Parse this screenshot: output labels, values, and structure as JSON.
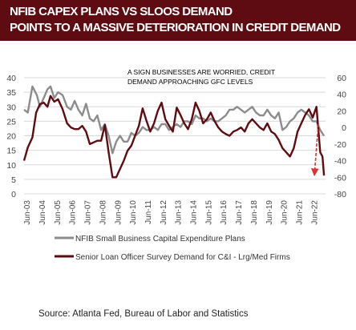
{
  "header": {
    "title_line_1": "NFIB CAPEX PLANS VS SLOOS DEMAND",
    "title_line_2": "POINTS TO A MASSIVE DETERIORATION IN CREDIT DEMAND",
    "background": "#5e0c12"
  },
  "source": "Source:  Atlanta  Fed, Bureau of Labor and Statistics",
  "chart_data": {
    "type": "line",
    "annotation": [
      "A SIGN BUSINESSES ARE WORRIED, CREDIT",
      "DEMAND APPROACHING GFC LEVELS"
    ],
    "x_ticks": [
      "Jun-03",
      "Jun-04",
      "Jun-05",
      "Jun-06",
      "Jun-07",
      "Jun-08",
      "Jun-09",
      "Jun-10",
      "Jun-11",
      "Jun-12",
      "Jun-13",
      "Jun-14",
      "Jun-15",
      "Jun-16",
      "Jun-17",
      "Jun-18",
      "Jun-19",
      "Jun-20",
      "Jun-21",
      "Jun-22"
    ],
    "x_range": [
      2003.25,
      2023.2
    ],
    "left_axis": {
      "ticks": [
        0,
        5,
        10,
        15,
        20,
        25,
        30,
        35,
        40
      ],
      "ylim": [
        0,
        40
      ]
    },
    "right_axis": {
      "ticks": [
        -80,
        -60,
        -40,
        -20,
        0,
        20,
        40,
        60
      ],
      "ylim": [
        -80,
        60
      ]
    },
    "grid": "horizontal",
    "legend_position": "bottom",
    "series": [
      {
        "name": "NFIB Small Business Capital Expenditure Plans",
        "axis": "left",
        "color": "#8c8c8c",
        "points": [
          [
            2003.25,
            29
          ],
          [
            2003.5,
            28
          ],
          [
            2003.8,
            37
          ],
          [
            2004.1,
            34
          ],
          [
            2004.3,
            30
          ],
          [
            2004.55,
            33
          ],
          [
            2004.8,
            36
          ],
          [
            2005.0,
            37
          ],
          [
            2005.25,
            33
          ],
          [
            2005.5,
            35
          ],
          [
            2005.8,
            34
          ],
          [
            2006.1,
            30
          ],
          [
            2006.35,
            29
          ],
          [
            2006.6,
            32
          ],
          [
            2006.85,
            29
          ],
          [
            2007.1,
            27
          ],
          [
            2007.35,
            31
          ],
          [
            2007.6,
            26
          ],
          [
            2007.85,
            25
          ],
          [
            2008.1,
            27
          ],
          [
            2008.35,
            22
          ],
          [
            2008.6,
            24
          ],
          [
            2008.85,
            20
          ],
          [
            2009.1,
            14
          ],
          [
            2009.35,
            18
          ],
          [
            2009.6,
            20
          ],
          [
            2009.85,
            18
          ],
          [
            2010.1,
            18
          ],
          [
            2010.35,
            21
          ],
          [
            2010.6,
            20
          ],
          [
            2010.85,
            21
          ],
          [
            2011.1,
            23
          ],
          [
            2011.35,
            22
          ],
          [
            2011.6,
            22
          ],
          [
            2011.85,
            23
          ],
          [
            2012.1,
            22
          ],
          [
            2012.35,
            24
          ],
          [
            2012.6,
            24
          ],
          [
            2012.85,
            22
          ],
          [
            2013.1,
            23
          ],
          [
            2013.35,
            24
          ],
          [
            2013.6,
            23
          ],
          [
            2013.85,
            25
          ],
          [
            2014.1,
            25
          ],
          [
            2014.35,
            24
          ],
          [
            2014.6,
            27
          ],
          [
            2014.85,
            26
          ],
          [
            2015.1,
            26
          ],
          [
            2015.35,
            25
          ],
          [
            2015.6,
            26
          ],
          [
            2015.85,
            25
          ],
          [
            2016.1,
            25
          ],
          [
            2016.35,
            26
          ],
          [
            2016.6,
            27
          ],
          [
            2016.85,
            29
          ],
          [
            2017.1,
            29
          ],
          [
            2017.35,
            30
          ],
          [
            2017.6,
            29
          ],
          [
            2017.85,
            28
          ],
          [
            2018.1,
            29
          ],
          [
            2018.35,
            30
          ],
          [
            2018.6,
            28
          ],
          [
            2018.85,
            27
          ],
          [
            2019.1,
            27
          ],
          [
            2019.35,
            29
          ],
          [
            2019.6,
            27
          ],
          [
            2019.85,
            26
          ],
          [
            2020.1,
            28
          ],
          [
            2020.35,
            22
          ],
          [
            2020.6,
            23
          ],
          [
            2020.85,
            25
          ],
          [
            2021.1,
            26
          ],
          [
            2021.35,
            28
          ],
          [
            2021.6,
            29
          ],
          [
            2021.85,
            28
          ],
          [
            2022.1,
            27
          ],
          [
            2022.35,
            25
          ],
          [
            2022.6,
            25
          ],
          [
            2022.85,
            22
          ],
          [
            2023.1,
            20
          ]
        ]
      },
      {
        "name": "Senior Loan Officer Survey Demand for C&I - Lrg/Med Firms",
        "axis": "right",
        "color": "#5e0c12",
        "points": [
          [
            2003.25,
            -40
          ],
          [
            2003.5,
            -24
          ],
          [
            2003.8,
            -12
          ],
          [
            2004.05,
            18
          ],
          [
            2004.3,
            28
          ],
          [
            2004.55,
            30
          ],
          [
            2004.8,
            25
          ],
          [
            2005.0,
            38
          ],
          [
            2005.25,
            31
          ],
          [
            2005.5,
            34
          ],
          [
            2005.8,
            22
          ],
          [
            2006.1,
            5
          ],
          [
            2006.35,
            0
          ],
          [
            2006.6,
            -2
          ],
          [
            2006.85,
            -2
          ],
          [
            2007.1,
            2
          ],
          [
            2007.35,
            -5
          ],
          [
            2007.6,
            -20
          ],
          [
            2007.85,
            -18
          ],
          [
            2008.1,
            -16
          ],
          [
            2008.35,
            -16
          ],
          [
            2008.6,
            3
          ],
          [
            2008.85,
            -30
          ],
          [
            2009.1,
            -60
          ],
          [
            2009.35,
            -60
          ],
          [
            2009.6,
            -50
          ],
          [
            2009.85,
            -40
          ],
          [
            2010.1,
            -28
          ],
          [
            2010.35,
            -22
          ],
          [
            2010.6,
            -10
          ],
          [
            2010.85,
            2
          ],
          [
            2011.1,
            23
          ],
          [
            2011.35,
            8
          ],
          [
            2011.6,
            -5
          ],
          [
            2011.85,
            5
          ],
          [
            2012.1,
            20
          ],
          [
            2012.35,
            30
          ],
          [
            2012.6,
            10
          ],
          [
            2012.85,
            2
          ],
          [
            2013.1,
            -5
          ],
          [
            2013.35,
            24
          ],
          [
            2013.6,
            15
          ],
          [
            2013.85,
            5
          ],
          [
            2014.1,
            -2
          ],
          [
            2014.35,
            10
          ],
          [
            2014.6,
            30
          ],
          [
            2014.85,
            20
          ],
          [
            2015.1,
            5
          ],
          [
            2015.35,
            10
          ],
          [
            2015.6,
            18
          ],
          [
            2015.85,
            8
          ],
          [
            2016.1,
            0
          ],
          [
            2016.35,
            -5
          ],
          [
            2016.6,
            -8
          ],
          [
            2016.85,
            -10
          ],
          [
            2017.1,
            -5
          ],
          [
            2017.35,
            -3
          ],
          [
            2017.6,
            0
          ],
          [
            2017.85,
            -5
          ],
          [
            2018.1,
            5
          ],
          [
            2018.35,
            10
          ],
          [
            2018.6,
            5
          ],
          [
            2018.85,
            0
          ],
          [
            2019.1,
            -3
          ],
          [
            2019.35,
            5
          ],
          [
            2019.6,
            -5
          ],
          [
            2019.85,
            -8
          ],
          [
            2020.1,
            -15
          ],
          [
            2020.35,
            -25
          ],
          [
            2020.6,
            -30
          ],
          [
            2020.85,
            -35
          ],
          [
            2021.1,
            -25
          ],
          [
            2021.35,
            -5
          ],
          [
            2021.6,
            5
          ],
          [
            2021.85,
            15
          ],
          [
            2022.1,
            22
          ],
          [
            2022.35,
            12
          ],
          [
            2022.6,
            25
          ],
          [
            2022.85,
            -30
          ],
          [
            2023.0,
            -35
          ],
          [
            2023.1,
            -58
          ]
        ]
      }
    ]
  }
}
